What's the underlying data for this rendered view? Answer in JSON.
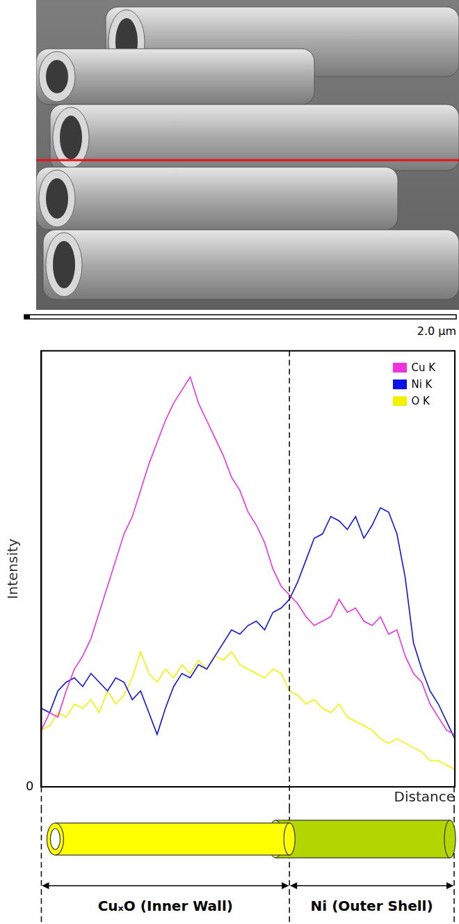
{
  "image": {
    "scale_bar": "2.0 μm"
  },
  "chart_data": {
    "type": "line",
    "x_label": "Distance",
    "y_label": "Intensity",
    "x": [
      0,
      2,
      4,
      6,
      8,
      10,
      12,
      14,
      16,
      18,
      20,
      22,
      24,
      26,
      28,
      30,
      32,
      34,
      36,
      38,
      40,
      42,
      44,
      46,
      48,
      50,
      52,
      54,
      56,
      58,
      60,
      62,
      64,
      66,
      68,
      70,
      72,
      74,
      76,
      78,
      80,
      82,
      84,
      86,
      88,
      90,
      92,
      94,
      96,
      98,
      100
    ],
    "series": [
      {
        "name": "Cu K",
        "color": "#ee33dd",
        "values": [
          13,
          17,
          16,
          22,
          27,
          30,
          34,
          40,
          46,
          52,
          58,
          62,
          68,
          74,
          79,
          84,
          88,
          91,
          94,
          88,
          84,
          80,
          76,
          71,
          68,
          63,
          60,
          56,
          50,
          46,
          44,
          42,
          39,
          37,
          38,
          39,
          43,
          40,
          41,
          38,
          37,
          39,
          35,
          36,
          30,
          26,
          24,
          19,
          16,
          13,
          12
        ]
      },
      {
        "name": "Ni K",
        "color": "#0a14e6",
        "values": [
          18,
          17,
          22,
          24,
          25,
          23,
          26,
          24,
          22,
          25,
          24,
          20,
          22,
          17,
          12,
          18,
          23,
          26,
          25,
          28,
          27,
          30,
          33,
          36,
          35,
          37,
          38,
          36,
          40,
          41,
          43,
          47,
          52,
          57,
          58,
          62,
          61,
          59,
          62,
          57,
          60,
          64,
          63,
          58,
          48,
          33,
          27,
          22,
          19,
          15,
          11
        ]
      },
      {
        "name": "O K",
        "color": "#f2f200",
        "values": [
          13,
          14,
          17,
          16,
          19,
          18,
          20,
          17,
          22,
          19,
          21,
          25,
          31,
          26,
          24,
          27,
          25,
          28,
          26,
          29,
          27,
          30,
          29,
          31,
          28,
          27,
          26,
          25,
          27,
          26,
          22,
          21,
          19,
          20,
          18,
          17,
          19,
          16,
          15,
          14,
          13,
          11,
          10,
          11,
          10,
          9,
          8,
          6,
          6,
          5,
          4
        ]
      }
    ],
    "xlim": [
      0,
      100
    ],
    "ylim": [
      0,
      100
    ],
    "yticks": [
      0
    ],
    "tick_labels": "y",
    "grid": false,
    "legend": "upper right",
    "annotations": [
      {
        "type": "vline",
        "x": 60,
        "line_style": "dashed"
      }
    ]
  },
  "schematic": {
    "labels": [
      "CuₓO (Inner Wall)",
      "Ni (Outer Shell)"
    ]
  }
}
